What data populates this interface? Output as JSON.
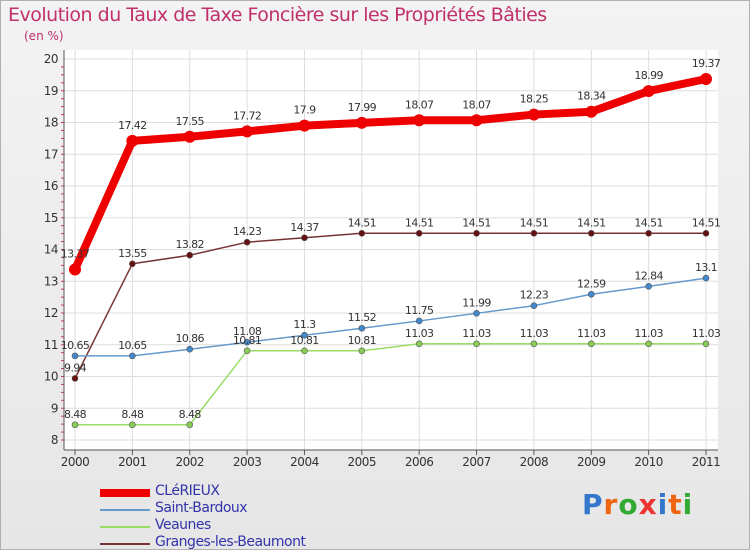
{
  "chart_data": {
    "type": "line",
    "title": "Evolution du Taux de Taxe Foncière sur les Propriétés Bâties",
    "ylabel": "(en %)",
    "xlabel": "",
    "ylim": [
      8,
      20
    ],
    "yticks": [
      8,
      9,
      10,
      11,
      12,
      13,
      14,
      15,
      16,
      17,
      18,
      19,
      20
    ],
    "categories": [
      "2000",
      "2001",
      "2002",
      "2003",
      "2004",
      "2005",
      "2006",
      "2007",
      "2008",
      "2009",
      "2010",
      "2011"
    ],
    "series": [
      {
        "name": "CLéRIEUX",
        "color": "#ee0000",
        "values": [
          13.37,
          17.42,
          17.55,
          17.72,
          17.9,
          17.99,
          18.07,
          18.07,
          18.25,
          18.34,
          18.99,
          19.37
        ]
      },
      {
        "name": "Saint-Bardoux",
        "color": "#6699cc",
        "values": [
          10.65,
          10.65,
          10.86,
          11.08,
          11.3,
          11.52,
          11.75,
          11.99,
          12.23,
          12.59,
          12.84,
          13.1
        ]
      },
      {
        "name": "Veaunes",
        "color": "#99dd66",
        "values": [
          8.48,
          8.48,
          8.48,
          10.81,
          10.81,
          10.81,
          11.03,
          11.03,
          11.03,
          11.03,
          11.03,
          11.03
        ]
      },
      {
        "name": "Granges-les-Beaumont",
        "color": "#773333",
        "values": [
          9.94,
          13.55,
          13.82,
          14.23,
          14.37,
          14.51,
          14.51,
          14.51,
          14.51,
          14.51,
          14.51,
          14.51
        ]
      }
    ]
  },
  "labels": {
    "clerieux": [
      "13.37",
      "17.42",
      "17.55",
      "17.72",
      "17.9",
      "17.99",
      "18.07",
      "18.07",
      "18.25",
      "18.34",
      "18.99",
      "19.37"
    ],
    "saint_bardoux": [
      "10.65",
      "10.65",
      "10.86",
      "11.08",
      "11.3",
      "11.52",
      "11.75",
      "11.99",
      "12.23",
      "12.59",
      "12.84",
      "13.1"
    ],
    "veaunes": [
      "8.48",
      "8.48",
      "8.48",
      "10.81",
      "10.81",
      "10.81",
      "11.03",
      "11.03",
      "11.03",
      "11.03",
      "11.03",
      "11.03"
    ],
    "granges": [
      "9.94",
      "13.55",
      "13.82",
      "14.23",
      "14.37",
      "14.51",
      "14.51",
      "14.51",
      "14.51",
      "14.51",
      "14.51",
      "14.51"
    ]
  },
  "logo": {
    "text": "Proxiti",
    "colors": [
      "#3377cc",
      "#ee6611",
      "#33aa33",
      "#ee3333",
      "#3377cc",
      "#ee6611",
      "#33aa33"
    ]
  }
}
